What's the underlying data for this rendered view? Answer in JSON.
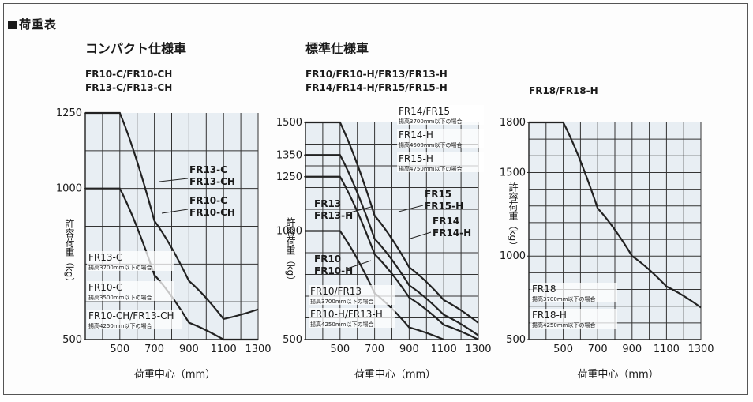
{
  "header": {
    "title": "荷重表"
  },
  "sections": {
    "compact": "コンパクト仕様車",
    "standard": "標準仕様車"
  },
  "charts": {
    "c1": {
      "models": [
        "FR10-C/FR10-CH",
        "FR13-C/FR13-CH"
      ]
    },
    "c2": {
      "models": [
        "FR10/FR10-H/FR13/FR13-H",
        "FR14/FR14-H/FR15/FR15-H"
      ]
    },
    "c3": {
      "models": [
        "FR18/FR18-H"
      ]
    }
  },
  "chart_data": [
    {
      "type": "line",
      "xlabel": "荷重中心（mm）",
      "ylabel": "許容荷重（kg）",
      "x_ticks": [
        500,
        700,
        900,
        1100,
        1300
      ],
      "y_ticks": [
        500,
        1000,
        1250
      ],
      "xlim": [
        300,
        1300
      ],
      "ylim": [
        500,
        1250
      ],
      "series": [
        {
          "name": "FR13-C FR13-CH",
          "label": [
            "FR13-C",
            "FR13-CH"
          ],
          "x": [
            300,
            500,
            700,
            900,
            1100,
            1300
          ],
          "y": [
            1250,
            1250,
            893,
            694,
            568,
            600
          ]
        },
        {
          "name": "FR10-C FR10-CH",
          "label": [
            "FR10-C",
            "FR10-CH"
          ],
          "x": [
            300,
            500,
            700,
            900,
            1100,
            1300
          ],
          "y": [
            1000,
            1000,
            714,
            556,
            500,
            500
          ]
        }
      ],
      "notes": [
        {
          "main": "FR13-C",
          "sub": "揚高3700mm以下の場合"
        },
        {
          "main": "FR10-C",
          "sub": "揚高3500mm以下の場合"
        },
        {
          "main": "FR10-CH/FR13-CH",
          "sub": "揚高4250mm以下の場合"
        }
      ]
    },
    {
      "type": "line",
      "xlabel": "荷重中心（mm）",
      "ylabel": "許容荷重（kg）",
      "x_ticks": [
        500,
        700,
        900,
        1100,
        1300
      ],
      "y_ticks": [
        500,
        1000,
        1250,
        1350,
        1500
      ],
      "xlim": [
        300,
        1300
      ],
      "ylim": [
        500,
        1500
      ],
      "series": [
        {
          "name": "FR14/FR15",
          "x": [
            300,
            500,
            700,
            900,
            1100,
            1300
          ],
          "y": [
            1500,
            1500,
            1071,
            833,
            682,
            577
          ]
        },
        {
          "name": "FR14 FR14-H",
          "label": [
            "FR14",
            "FR14-H"
          ],
          "x": [
            300,
            500,
            700,
            900,
            1100,
            1300
          ],
          "y": [
            1350,
            1350,
            964,
            750,
            614,
            519
          ]
        },
        {
          "name": "FR13 FR13-H",
          "label": [
            "FR13",
            "FR13-H"
          ],
          "x": [
            300,
            500,
            700,
            900,
            1100,
            1300
          ],
          "y": [
            1250,
            1250,
            893,
            694,
            568,
            500
          ]
        },
        {
          "name": "FR10 FR10-H",
          "label": [
            "FR10",
            "FR10-H"
          ],
          "x": [
            300,
            500,
            700,
            900,
            1100
          ],
          "y": [
            1000,
            1000,
            714,
            556,
            500
          ]
        }
      ],
      "curve_labels": [
        {
          "main": "FR15",
          "sub": "FR15-H"
        },
        {
          "main": "FR14",
          "sub": "FR14-H"
        }
      ],
      "notes": [
        {
          "main": "FR14/FR15",
          "sub": "揚高3700mm以下の場合"
        },
        {
          "main": "FR14-H",
          "sub": "揚高4500mm以下の場合"
        },
        {
          "main": "FR15-H",
          "sub": "揚高4750mm以下の場合"
        },
        {
          "main": "FR10/FR13",
          "sub": "揚高3700mm以下の場合"
        },
        {
          "main": "FR10-H/FR13-H",
          "sub": "揚高4250mm以下の場合"
        }
      ]
    },
    {
      "type": "line",
      "xlabel": "荷重中心（mm）",
      "ylabel": "許容荷重（kg）",
      "x_ticks": [
        500,
        700,
        900,
        1100,
        1300
      ],
      "y_ticks": [
        500,
        1000,
        1500,
        1800
      ],
      "xlim": [
        300,
        1300
      ],
      "ylim": [
        500,
        1800
      ],
      "series": [
        {
          "name": "FR18",
          "x": [
            300,
            500,
            700,
            900,
            1100,
            1300
          ],
          "y": [
            1800,
            1800,
            1286,
            1000,
            818,
            692
          ]
        }
      ],
      "notes": [
        {
          "main": "FR18",
          "sub": "揚高3700mm以下の場合"
        },
        {
          "main": "FR18-H",
          "sub": "揚高4250mm以下の場合"
        }
      ]
    }
  ]
}
